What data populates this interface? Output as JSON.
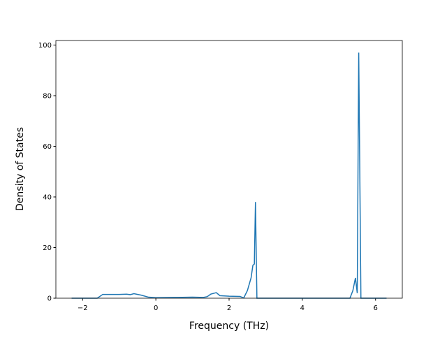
{
  "chart_data": {
    "type": "line",
    "xlabel": "Frequency (THz)",
    "ylabel": "Density of States",
    "x": [
      -2.3,
      -1.6,
      -1.45,
      -1.0,
      -0.8,
      -0.7,
      -0.6,
      -0.4,
      -0.2,
      0,
      0.5,
      1.0,
      1.3,
      1.4,
      1.5,
      1.65,
      1.75,
      2.0,
      2.3,
      2.4,
      2.5,
      2.6,
      2.65,
      2.69,
      2.72,
      2.76,
      5.3,
      5.38,
      5.45,
      5.5,
      5.54,
      5.6,
      6.3
    ],
    "series": [
      {
        "color": "#1f77b4",
        "values": [
          0,
          0,
          1.5,
          1.5,
          1.6,
          1.4,
          1.8,
          1.2,
          0.4,
          0.2,
          0.3,
          0.4,
          0.3,
          0.6,
          1.6,
          2.2,
          1.0,
          0.8,
          0.7,
          0.1,
          3,
          8,
          13,
          13.5,
          38,
          0,
          0,
          3,
          8,
          2,
          97,
          0,
          0
        ]
      }
    ],
    "xlim": [
      -2.73,
      6.73
    ],
    "ylim": [
      0,
      101.8
    ],
    "xticks": [
      {
        "value": -2,
        "label": "−2"
      },
      0,
      2,
      4,
      6
    ],
    "yticks": [
      0,
      20,
      40,
      60,
      80,
      100
    ]
  }
}
